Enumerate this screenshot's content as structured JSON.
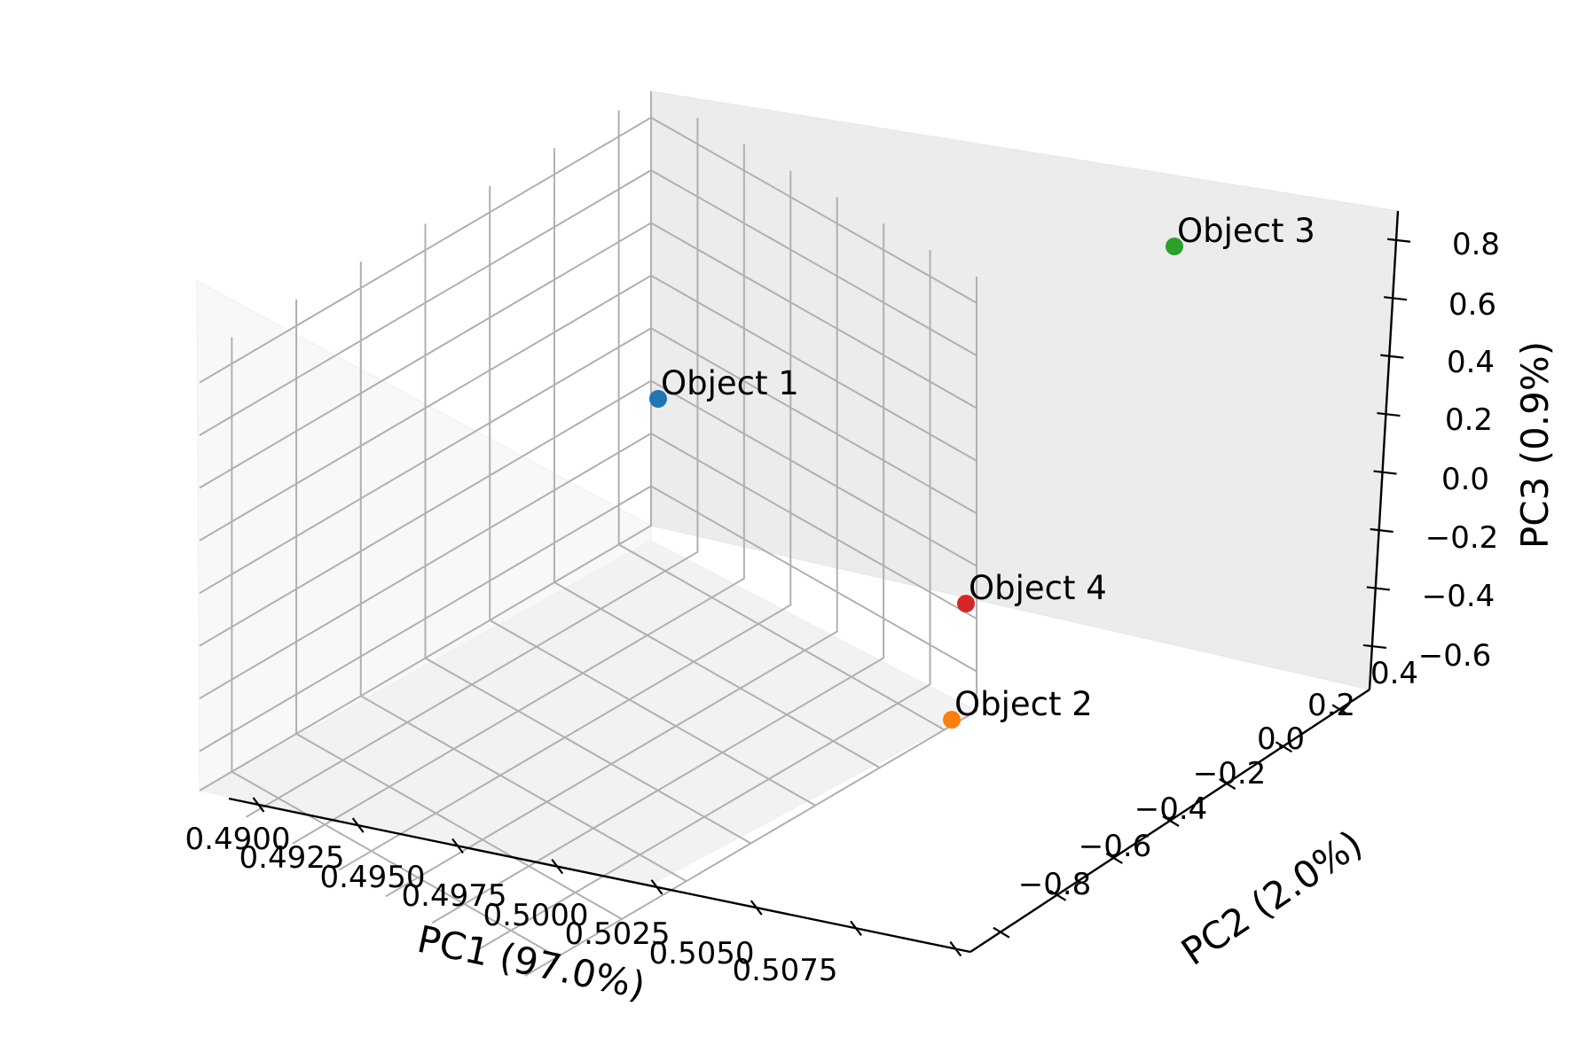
{
  "chart_data": {
    "type": "scatter",
    "projection": "3d",
    "grid": true,
    "xlabel": "PC1 (97.0%)",
    "ylabel": "PC2 (2.0%)",
    "zlabel": "PC3 (0.9%)",
    "xticks": [
      "0.4900",
      "0.4925",
      "0.4950",
      "0.4975",
      "0.5000",
      "0.5025",
      "0.5050",
      "0.5075"
    ],
    "yticks": [
      "−0.8",
      "−0.6",
      "−0.4",
      "−0.2",
      "0.0",
      "0.2",
      "0.4"
    ],
    "zticks": [
      "−0.6",
      "−0.4",
      "−0.2",
      "0.0",
      "0.2",
      "0.4",
      "0.6",
      "0.8"
    ],
    "points": [
      {
        "label": "Object 1",
        "x": 0.49,
        "y": 0.48,
        "z": 0.28,
        "color": "#1f77b4"
      },
      {
        "label": "Object 2",
        "x": 0.5075,
        "y": 0.45,
        "z": -0.48,
        "color": "#ff7f0e"
      },
      {
        "label": "Object 3",
        "x": 0.5075,
        "y": -0.02,
        "z": 0.69,
        "color": "#2ca02c"
      },
      {
        "label": "Object 4",
        "x": 0.5,
        "y": 0.48,
        "z": -0.3,
        "color": "#d62728"
      }
    ]
  }
}
